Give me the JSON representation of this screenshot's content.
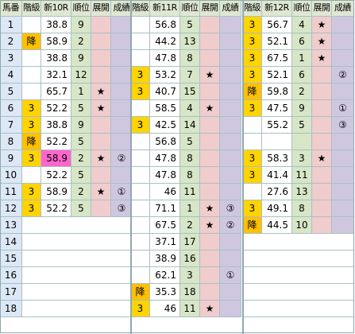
{
  "headers": {
    "horse_no": "馬番",
    "cls": "階級",
    "race1": "新10R",
    "race2": "新11R",
    "race3": "新12R",
    "rank": "順位",
    "dev": "展開",
    "res": "成績"
  },
  "colors": {
    "header_bg": "#dfe7d2",
    "horse_bg": "#dce8f6",
    "class3_bg": "#ffd400",
    "fall_bg": "#ffc000",
    "highlight_score_bg": "#ff66cc",
    "rank_bg": "#d6e6c6",
    "dev_bg": "#f1cccd",
    "res_bg": "#cfc7e0"
  },
  "rows": [
    {
      "no": "1",
      "r1": {
        "cls": "",
        "score": "38.8",
        "rank": "9",
        "dev": "",
        "res": ""
      },
      "r2": {
        "cls": "",
        "score": "56.8",
        "rank": "5",
        "dev": "",
        "res": ""
      },
      "r3": {
        "cls": "3",
        "score": "56.7",
        "rank": "4",
        "dev": "★",
        "res": ""
      }
    },
    {
      "no": "2",
      "r1": {
        "cls": "降",
        "score": "58.9",
        "rank": "2",
        "dev": "",
        "res": ""
      },
      "r2": {
        "cls": "",
        "score": "44.2",
        "rank": "13",
        "dev": "",
        "res": ""
      },
      "r3": {
        "cls": "3",
        "score": "52.1",
        "rank": "6",
        "dev": "★",
        "res": ""
      }
    },
    {
      "no": "3",
      "r1": {
        "cls": "",
        "score": "38.8",
        "rank": "9",
        "dev": "",
        "res": ""
      },
      "r2": {
        "cls": "",
        "score": "47.8",
        "rank": "8",
        "dev": "",
        "res": ""
      },
      "r3": {
        "cls": "3",
        "score": "67.5",
        "rank": "1",
        "dev": "★",
        "res": ""
      }
    },
    {
      "no": "4",
      "r1": {
        "cls": "",
        "score": "32.1",
        "rank": "12",
        "dev": "",
        "res": ""
      },
      "r2": {
        "cls": "3",
        "score": "53.2",
        "rank": "7",
        "dev": "★",
        "res": ""
      },
      "r3": {
        "cls": "3",
        "score": "52.1",
        "rank": "6",
        "dev": "",
        "res": "②"
      }
    },
    {
      "no": "5",
      "r1": {
        "cls": "",
        "score": "65.7",
        "rank": "1",
        "dev": "★",
        "res": ""
      },
      "r2": {
        "cls": "3",
        "score": "40.7",
        "rank": "15",
        "dev": "",
        "res": ""
      },
      "r3": {
        "cls": "降",
        "score": "59.8",
        "rank": "2",
        "dev": "",
        "res": ""
      }
    },
    {
      "no": "6",
      "r1": {
        "cls": "3",
        "score": "52.2",
        "rank": "5",
        "dev": "★",
        "res": ""
      },
      "r2": {
        "cls": "",
        "score": "58.5",
        "rank": "4",
        "dev": "★",
        "res": ""
      },
      "r3": {
        "cls": "3",
        "score": "47.5",
        "rank": "9",
        "dev": "",
        "res": "①"
      }
    },
    {
      "no": "7",
      "r1": {
        "cls": "3",
        "score": "38.8",
        "rank": "9",
        "dev": "",
        "res": ""
      },
      "r2": {
        "cls": "3",
        "score": "42.5",
        "rank": "14",
        "dev": "",
        "res": ""
      },
      "r3": {
        "cls": "",
        "score": "55.2",
        "rank": "5",
        "dev": "",
        "res": "③"
      }
    },
    {
      "no": "8",
      "r1": {
        "cls": "降",
        "score": "52.2",
        "rank": "5",
        "dev": "",
        "res": ""
      },
      "r2": {
        "cls": "",
        "score": "56.8",
        "rank": "5",
        "dev": "",
        "res": ""
      },
      "r3": {
        "cls": "",
        "score": "",
        "rank": "",
        "dev": "",
        "res": ""
      }
    },
    {
      "no": "9",
      "r1": {
        "cls": "3",
        "score": "58.9",
        "rank": "2",
        "dev": "★",
        "res": "②",
        "hl": true
      },
      "r2": {
        "cls": "",
        "score": "47.8",
        "rank": "8",
        "dev": "",
        "res": ""
      },
      "r3": {
        "cls": "3",
        "score": "58.3",
        "rank": "3",
        "dev": "★",
        "res": ""
      }
    },
    {
      "no": "10",
      "r1": {
        "cls": "",
        "score": "52.2",
        "rank": "5",
        "dev": "",
        "res": ""
      },
      "r2": {
        "cls": "",
        "score": "47.8",
        "rank": "8",
        "dev": "",
        "res": ""
      },
      "r3": {
        "cls": "3",
        "score": "41.4",
        "rank": "11",
        "dev": "",
        "res": ""
      }
    },
    {
      "no": "11",
      "r1": {
        "cls": "3",
        "score": "58.9",
        "rank": "2",
        "dev": "★",
        "res": "①"
      },
      "r2": {
        "cls": "",
        "score": "46",
        "rank": "11",
        "dev": "",
        "res": ""
      },
      "r3": {
        "cls": "",
        "score": "27.6",
        "rank": "13",
        "dev": "",
        "res": ""
      }
    },
    {
      "no": "12",
      "r1": {
        "cls": "3",
        "score": "52.2",
        "rank": "5",
        "dev": "",
        "res": "③"
      },
      "r2": {
        "cls": "",
        "score": "71.1",
        "rank": "1",
        "dev": "★",
        "res": "③"
      },
      "r3": {
        "cls": "3",
        "score": "49.1",
        "rank": "8",
        "dev": "",
        "res": ""
      }
    },
    {
      "no": "13",
      "r1": null,
      "r2": {
        "cls": "",
        "score": "67.5",
        "rank": "2",
        "dev": "★",
        "res": "②"
      },
      "r3": {
        "cls": "降",
        "score": "44.5",
        "rank": "10",
        "dev": "",
        "res": ""
      }
    },
    {
      "no": "14",
      "r1": null,
      "r2": {
        "cls": "",
        "score": "37.1",
        "rank": "17",
        "dev": "",
        "res": ""
      },
      "r3": null
    },
    {
      "no": "15",
      "r1": null,
      "r2": {
        "cls": "",
        "score": "38.9",
        "rank": "16",
        "dev": "",
        "res": ""
      },
      "r3": null
    },
    {
      "no": "16",
      "r1": null,
      "r2": {
        "cls": "",
        "score": "62.1",
        "rank": "3",
        "dev": "",
        "res": "①"
      },
      "r3": null
    },
    {
      "no": "17",
      "r1": null,
      "r2": {
        "cls": "降",
        "score": "35.3",
        "rank": "18",
        "dev": "",
        "res": ""
      },
      "r3": null
    },
    {
      "no": "18",
      "r1": null,
      "r2": {
        "cls": "3",
        "score": "46",
        "rank": "11",
        "dev": "★",
        "res": ""
      },
      "r3": null
    }
  ]
}
